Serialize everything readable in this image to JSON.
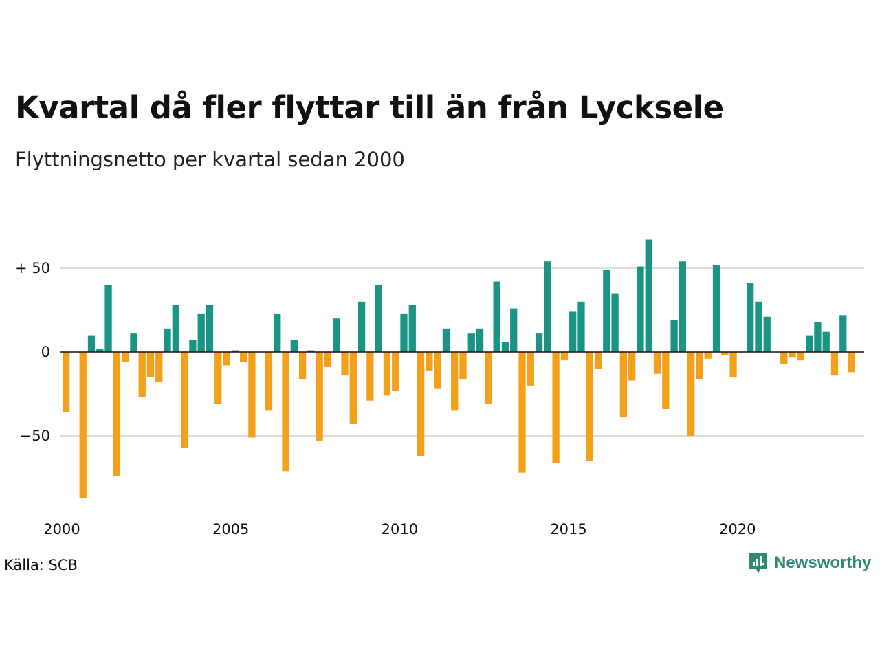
{
  "header": {
    "title": "Kvartal då fler flyttar till än från Lycksele",
    "subtitle": "Flyttningsnetto per kvartal sedan 2000"
  },
  "footer": {
    "source": "Källa: SCB",
    "brand": "Newsworthy",
    "brand_icon": "newsworthy-logo-icon"
  },
  "colors": {
    "positive": "#1a9485",
    "negative": "#f5a01a",
    "grid": "#dddddd",
    "brand": "#2e8b72"
  },
  "chart_data": {
    "type": "bar",
    "title": "Kvartal då fler flyttar till än från Lycksele",
    "subtitle": "Flyttningsnetto per kvartal sedan 2000",
    "ylim": [
      -95,
      70
    ],
    "xlim": [
      2000,
      2023.75
    ],
    "y_ticks": [
      {
        "value": 50,
        "label": "+ 50"
      },
      {
        "value": 0,
        "label": "0"
      },
      {
        "value": -50,
        "label": "−50"
      }
    ],
    "x_ticks": [
      {
        "value": 2000,
        "label": "2000"
      },
      {
        "value": 2005,
        "label": "2005"
      },
      {
        "value": 2010,
        "label": "2010"
      },
      {
        "value": 2015,
        "label": "2015"
      },
      {
        "value": 2020,
        "label": "2020"
      }
    ],
    "grid": true,
    "series": [
      {
        "start_year": 2000,
        "values": [
          -36,
          0,
          -87,
          10,
          2,
          40,
          -74,
          -6,
          11,
          -27,
          -15,
          -18,
          14,
          28,
          -57,
          7,
          23,
          28,
          -31,
          -8,
          1,
          -6,
          -51,
          0,
          -35,
          23,
          -71,
          7,
          -16,
          1,
          -53,
          -9,
          20,
          -14,
          -43,
          30,
          -29,
          40,
          -26,
          -23,
          23,
          28,
          -62,
          -11,
          -22,
          14,
          -35,
          -16,
          11,
          14,
          -31,
          42,
          6,
          26,
          -72,
          -20,
          11,
          54,
          -66,
          -5,
          24,
          30,
          -65,
          -10,
          49,
          35,
          -39,
          -17,
          51,
          67,
          -13,
          -34,
          19,
          54,
          -50,
          -16,
          -4,
          52,
          -2,
          -15,
          0,
          41,
          30,
          21,
          0,
          -7,
          -3,
          -5,
          10,
          18,
          12,
          -14,
          22,
          -12
        ]
      }
    ]
  }
}
